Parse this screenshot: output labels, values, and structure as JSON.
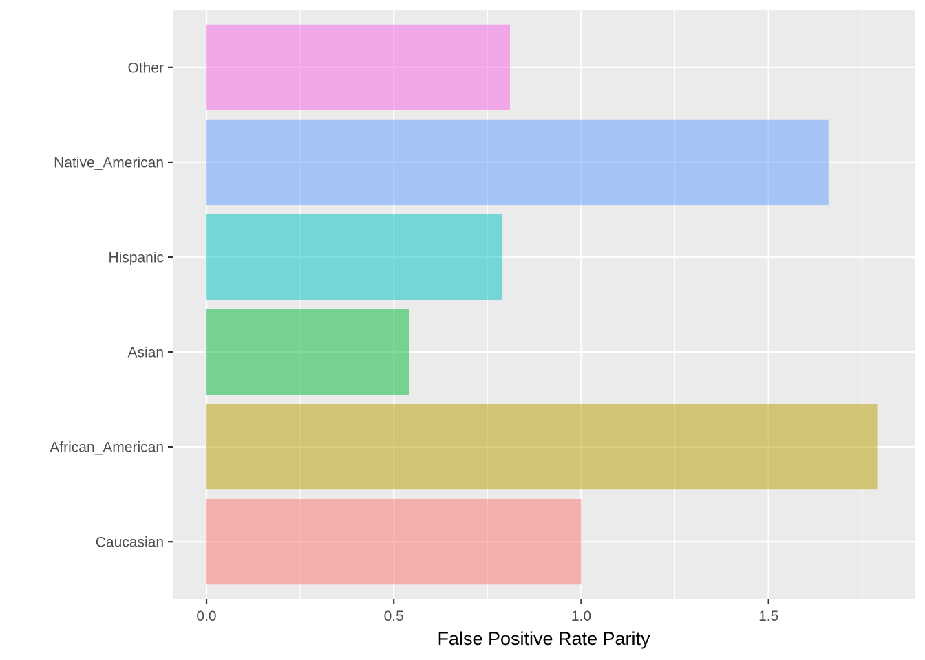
{
  "chart_data": {
    "type": "bar",
    "orientation": "horizontal",
    "title": "",
    "xlabel": "False Positive Rate Parity",
    "ylabel": "",
    "categories": [
      "Caucasian",
      "African_American",
      "Asian",
      "Hispanic",
      "Native_American",
      "Other"
    ],
    "values": [
      1.0,
      1.79,
      0.54,
      0.79,
      1.66,
      0.81
    ],
    "bar_colors": [
      "#F8766D",
      "#B79F00",
      "#00BA38",
      "#00BFC4",
      "#619CFF",
      "#F564E3"
    ],
    "bar_opacity": 0.5,
    "xlim": [
      -0.09,
      1.89
    ],
    "xticks": [
      0.0,
      0.5,
      1.0,
      1.5
    ],
    "xtick_labels": [
      "0.0",
      "0.5",
      "1.0",
      "1.5"
    ],
    "grid": true,
    "legend": "none",
    "panel_background": "#EBEBEB",
    "grid_color": "#FFFFFF"
  }
}
